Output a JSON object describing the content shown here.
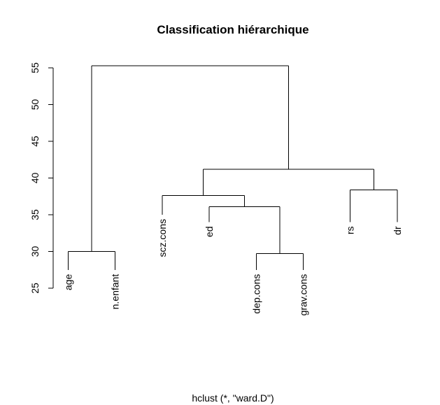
{
  "chart_data": {
    "type": "dendrogram",
    "title": "Classification hiérarchique",
    "xlabel": "hclust (*, \"ward.D\")",
    "ylabel": "",
    "ylim": [
      25,
      55
    ],
    "yticks": [
      25,
      30,
      35,
      40,
      45,
      50,
      55
    ],
    "leaves": [
      "age",
      "n.enfant",
      "scz.cons",
      "ed",
      "dep.cons",
      "grav.cons",
      "rs",
      "dr"
    ],
    "leaf_heights": [
      27.5,
      27.5,
      35.0,
      34.0,
      27.5,
      27.5,
      34.0,
      34.0
    ],
    "merges": [
      {
        "left": "age",
        "right": "n.enfant",
        "height": 30.0
      },
      {
        "left": "dep.cons",
        "right": "grav.cons",
        "height": 29.7
      },
      {
        "left": "rs",
        "right": "dr",
        "height": 38.4
      },
      {
        "left": "ed",
        "right": "(dep.cons, grav.cons)",
        "height": 36.1
      },
      {
        "left": "scz.cons",
        "right": "(ed, dep.cons, grav.cons)",
        "height": 37.6
      },
      {
        "left": "(scz.cons, ed, dep.cons, grav.cons)",
        "right": "(rs, dr)",
        "height": 41.2
      },
      {
        "left": "(age, n.enfant)",
        "right": "(scz.cons, ed, dep.cons, grav.cons, rs, dr)",
        "height": 55.3
      }
    ]
  }
}
